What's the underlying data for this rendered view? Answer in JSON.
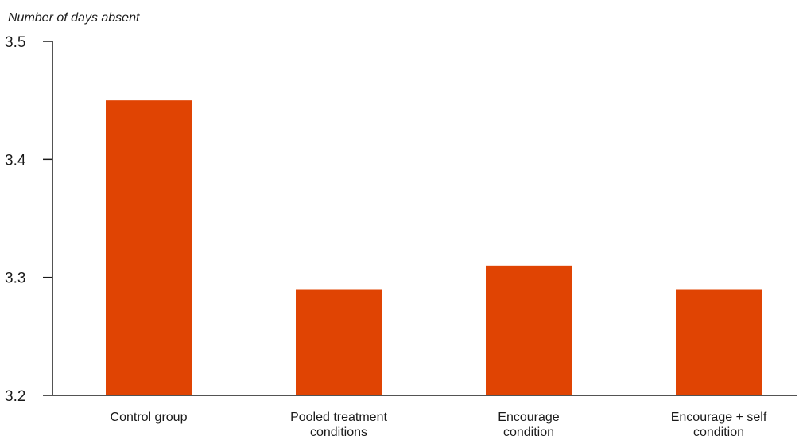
{
  "chart_data": {
    "type": "bar",
    "title": "",
    "ylabel": "Number of days absent",
    "xlabel": "",
    "categories": [
      [
        "Control group"
      ],
      [
        "Pooled treatment",
        "conditions"
      ],
      [
        "Encourage",
        "condition"
      ],
      [
        "Encourage + self",
        "condition"
      ]
    ],
    "values": [
      3.45,
      3.29,
      3.31,
      3.29
    ],
    "ylim": [
      3.2,
      3.5
    ],
    "yticks": [
      "3.2",
      "3.3",
      "3.4",
      "3.5"
    ],
    "grid": false,
    "bar_color": "#e04403",
    "axis_color": "#1a1a1a"
  }
}
